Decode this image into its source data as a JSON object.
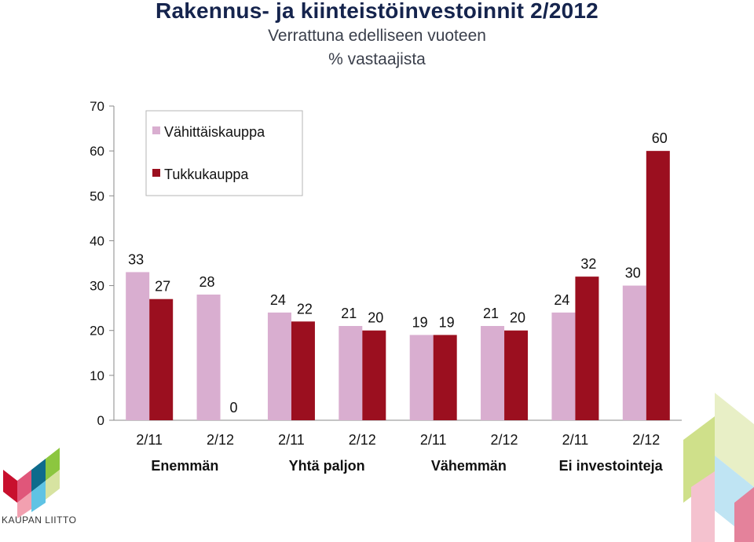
{
  "chart_data": {
    "type": "bar",
    "title": "Rakennus- ja kiinteistöinvestoinnit 2/2012",
    "subtitle": "Verrattuna edelliseen vuoteen",
    "ylabel": "% vastaajista",
    "ylim": [
      0,
      70
    ],
    "yticks": [
      0,
      10,
      20,
      30,
      40,
      50,
      60,
      70
    ],
    "grid": false,
    "legend_position": "top-left",
    "groups": [
      "Enemmän",
      "Yhtä paljon",
      "Vähemmän",
      "Ei investointeja"
    ],
    "categories": [
      "2/11",
      "2/12",
      "2/11",
      "2/12",
      "2/11",
      "2/12",
      "2/11",
      "2/12"
    ],
    "series": [
      {
        "name": "Vähittäiskauppa",
        "color": "#d9aed0",
        "values": [
          33,
          28,
          24,
          21,
          19,
          21,
          24,
          30
        ]
      },
      {
        "name": "Tukkukauppa",
        "color": "#9b0f1f",
        "values": [
          27,
          0,
          22,
          20,
          19,
          20,
          32,
          60
        ]
      }
    ]
  },
  "logo": {
    "text": "KAUPAN LIITTO"
  }
}
